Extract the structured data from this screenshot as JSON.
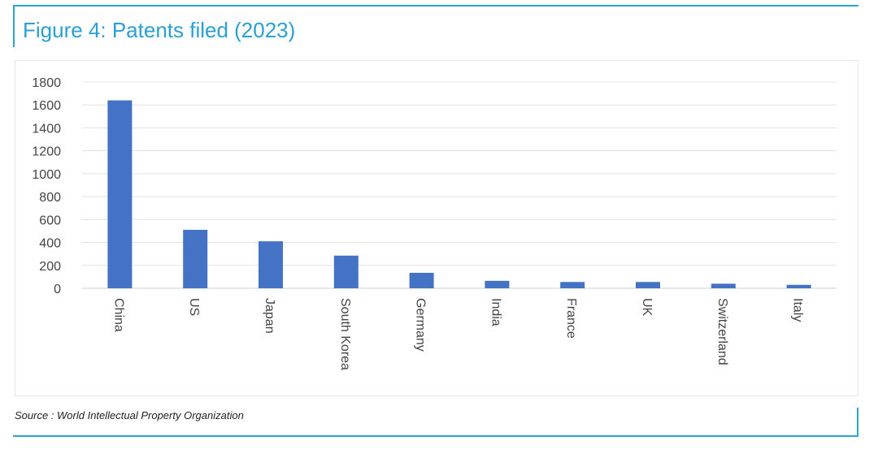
{
  "figure": {
    "title": "Figure 4: Patents filed (2023)",
    "source": "Source : World Intellectual Property Organization"
  },
  "colors": {
    "accent": "#2a9fd6",
    "bar": "#4472c4",
    "grid": "#e3e3e3"
  },
  "chart_data": {
    "type": "bar",
    "categories": [
      "China",
      "US",
      "Japan",
      "South Korea",
      "Germany",
      "India",
      "France",
      "UK",
      "Switzerland",
      "Italy"
    ],
    "values": [
      1640,
      510,
      410,
      285,
      135,
      65,
      55,
      55,
      40,
      30
    ],
    "title": "",
    "xlabel": "",
    "ylabel": "",
    "ylim": [
      0,
      1800
    ],
    "yticks": [
      0,
      200,
      400,
      600,
      800,
      1000,
      1200,
      1400,
      1600,
      1800
    ],
    "grid": true,
    "legend": "none"
  }
}
